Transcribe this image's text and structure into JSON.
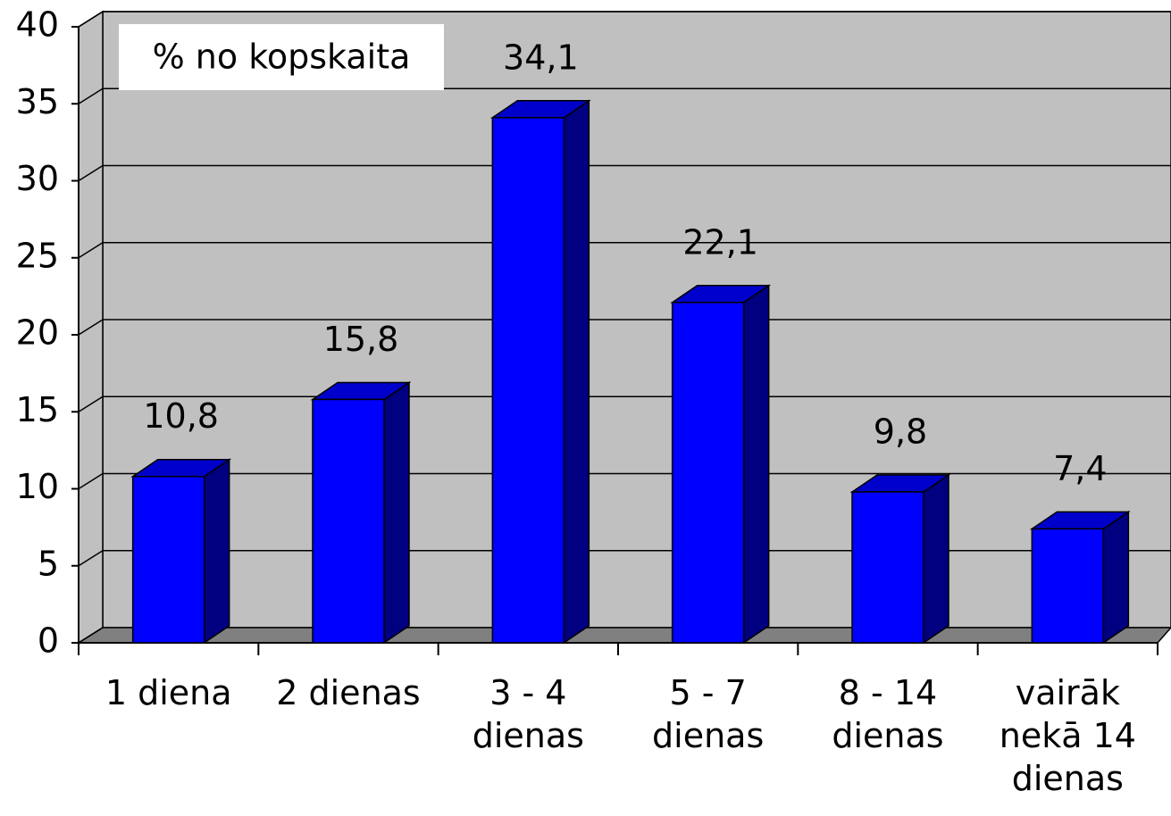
{
  "chart_data": {
    "type": "bar3d",
    "title": "% no kopskaita",
    "categories": [
      "1 diena",
      "2 dienas",
      "3 - 4 dienas",
      "5 - 7 dienas",
      "8 - 14 dienas",
      "vairāk nekā 14 dienas"
    ],
    "values": [
      10.8,
      15.8,
      34.1,
      22.1,
      9.8,
      7.4
    ],
    "value_labels": [
      "10,8",
      "15,8",
      "34,1",
      "22,1",
      "9,8",
      "7,4"
    ],
    "color": "#0000ff",
    "ylim": [
      0,
      40
    ],
    "yticks": [
      0,
      5,
      10,
      15,
      20,
      25,
      30,
      35,
      40
    ],
    "grid": true
  }
}
